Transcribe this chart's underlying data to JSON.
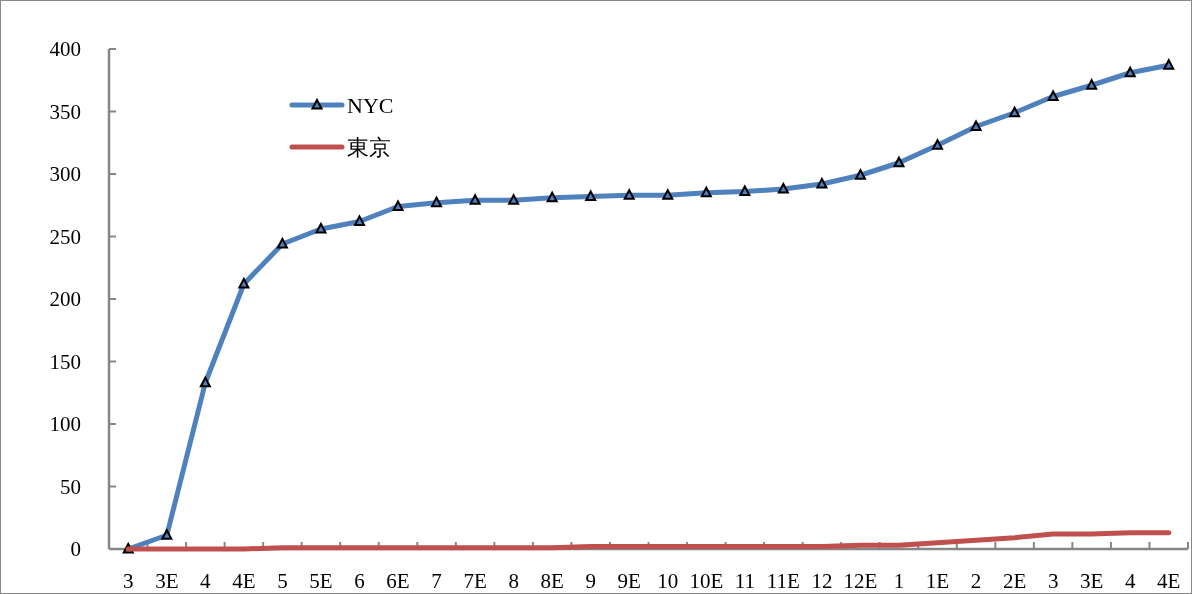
{
  "chart_data": {
    "type": "line",
    "categories": [
      "3",
      "3E",
      "4",
      "4E",
      "5",
      "5E",
      "6",
      "6E",
      "7",
      "7E",
      "8",
      "8E",
      "9",
      "9E",
      "10",
      "10E",
      "11",
      "11E",
      "12",
      "12E",
      "1",
      "1E",
      "2",
      "2E",
      "3",
      "3E",
      "4",
      "4E"
    ],
    "series": [
      {
        "name": "NYC",
        "color": "#4f81bd",
        "marker": "triangle",
        "values": [
          0,
          11,
          133,
          212,
          244,
          256,
          262,
          274,
          277,
          279,
          279,
          281,
          282,
          283,
          283,
          285,
          286,
          288,
          292,
          299,
          309,
          323,
          338,
          349,
          362,
          371,
          381,
          387
        ]
      },
      {
        "name": "東京",
        "color": "#c0504d",
        "marker": "none",
        "values": [
          0,
          0,
          0,
          0,
          1,
          1,
          1,
          1,
          1,
          1,
          1,
          1,
          2,
          2,
          2,
          2,
          2,
          2,
          2,
          3,
          3,
          5,
          7,
          9,
          12,
          12,
          13,
          13
        ]
      }
    ],
    "ylim": [
      0,
      400
    ],
    "yticks": [
      0,
      50,
      100,
      150,
      200,
      250,
      300,
      350,
      400
    ],
    "legend": "top left"
  }
}
